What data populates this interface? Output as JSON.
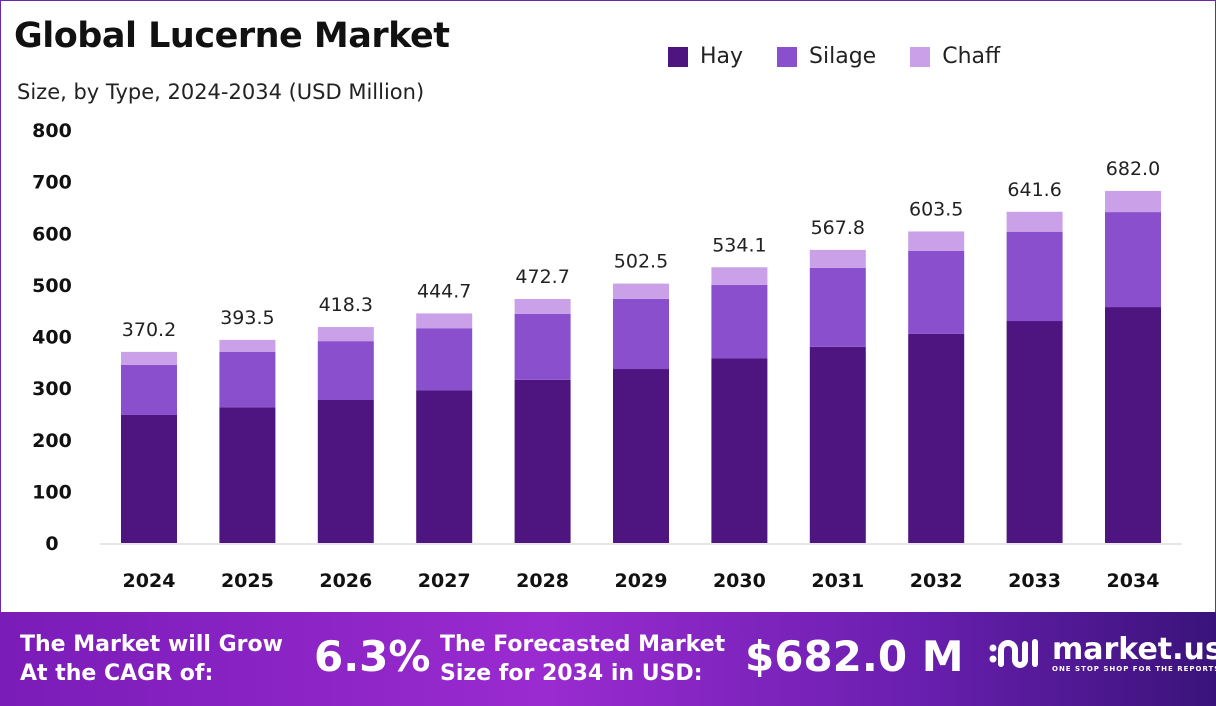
{
  "chart_data": {
    "type": "bar",
    "stacked": true,
    "title": "Global Lucerne Market",
    "subtitle": "Size, by Type, 2024-2034 (USD Million)",
    "categories": [
      "2024",
      "2025",
      "2026",
      "2027",
      "2028",
      "2029",
      "2030",
      "2031",
      "2032",
      "2033",
      "2034"
    ],
    "series": [
      {
        "name": "Hay",
        "color": "#4e1580",
        "values": [
          248,
          263,
          277,
          296,
          316,
          337,
          358,
          380,
          405,
          430,
          457
        ]
      },
      {
        "name": "Silage",
        "color": "#8a4fcc",
        "values": [
          97,
          107,
          114,
          120,
          128,
          136,
          142,
          153,
          161,
          173,
          184
        ]
      },
      {
        "name": "Chaff",
        "color": "#caa0e8",
        "values": [
          25.2,
          23.5,
          27.3,
          28.7,
          28.7,
          29.5,
          34.1,
          34.8,
          37.5,
          38.6,
          41.0
        ]
      }
    ],
    "totals": [
      "370.2",
      "393.5",
      "418.3",
      "444.7",
      "472.7",
      "502.5",
      "534.1",
      "567.8",
      "603.5",
      "641.6",
      "682.0"
    ],
    "yticks": [
      "0",
      "100",
      "200",
      "300",
      "400",
      "500",
      "600",
      "700",
      "800"
    ],
    "ylim": [
      0,
      800
    ],
    "grid": false,
    "legend_position": "top-right"
  },
  "banner": {
    "cagr_label_1": "The Market will Grow",
    "cagr_label_2": "At the CAGR of:",
    "cagr_value": "6.3%",
    "forecast_label_1": "The Forecasted Market",
    "forecast_label_2": "Size for 2034 in USD:",
    "forecast_value": "$682.0 M",
    "logo_name": "market.us",
    "logo_tagline": "ONE STOP SHOP FOR THE REPORTS"
  }
}
